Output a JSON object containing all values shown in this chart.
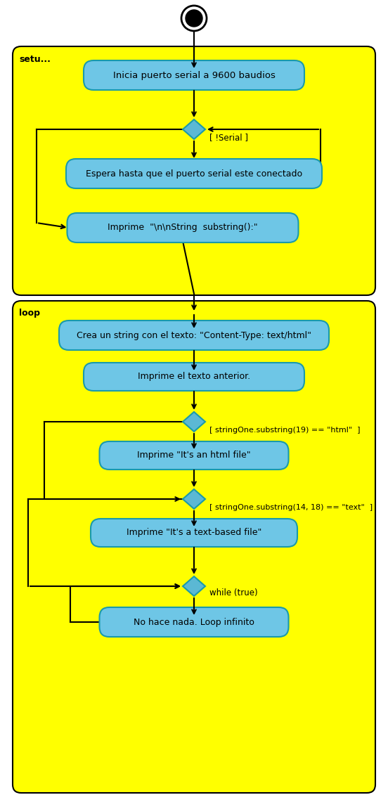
{
  "bg_color": "#FFFF00",
  "box_color": "#6EC6E6",
  "box_edge_color": "#1A9AAA",
  "diamond_color": "#5BB8D4",
  "diamond_edge": "#1A9AAA",
  "text_color": "#000000",
  "frame_edge": "#000000",
  "start_circle_fill": "#000000",
  "start_circle_edge": "#000000",
  "setup_label": "setu...",
  "loop_label": "loop",
  "box1_text": "Inicia puerto serial a 9600 baudios",
  "diamond1_label": "[ !Serial ]",
  "box2_text": "Espera hasta que el puerto serial este conectado",
  "box3_text": "Imprime  \"\\n\\nString  substring():\"",
  "box4_text": "Crea un string con el texto: \"Content-Type: text/html\"",
  "box5_text": "Imprime el texto anterior.",
  "diamond2_label": "[ stringOne.substring(19) == \"html\"  ]",
  "box6_text": "Imprime \"It's an html file\"",
  "diamond3_label": "[ stringOne.substring(14, 18) == \"text\"  ]",
  "box7_text": "Imprime \"It's a text-based file\"",
  "diamond4_label": "while (true)",
  "box8_text": "No hace nada. Loop infinito",
  "figw": 5.52,
  "figh": 11.41,
  "dpi": 100
}
